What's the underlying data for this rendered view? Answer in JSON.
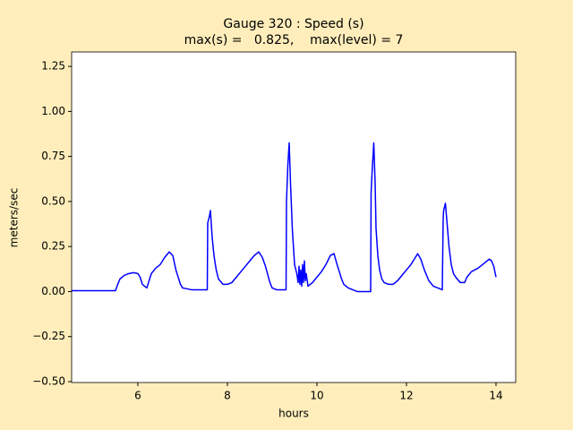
{
  "chart_data": {
    "type": "line",
    "title": "Gauge 320 : Speed (s)",
    "subtitle": "max(s) =   0.825,    max(level) = 7",
    "x_label": "hours",
    "y_label": "meters/sec",
    "x": [
      4.52,
      4.8,
      5.0,
      5.2,
      5.4,
      5.5,
      5.55,
      5.6,
      5.7,
      5.8,
      5.9,
      6.0,
      6.05,
      6.1,
      6.2,
      6.3,
      6.4,
      6.5,
      6.6,
      6.7,
      6.78,
      6.85,
      6.95,
      7.0,
      7.2,
      7.4,
      7.55,
      7.56,
      7.6,
      7.62,
      7.66,
      7.7,
      7.75,
      7.8,
      7.9,
      8.0,
      8.1,
      8.2,
      8.3,
      8.4,
      8.5,
      8.6,
      8.7,
      8.78,
      8.85,
      8.95,
      9.0,
      9.1,
      9.31,
      9.32,
      9.35,
      9.38,
      9.41,
      9.45,
      9.5,
      9.55,
      9.58,
      9.6,
      9.62,
      9.64,
      9.66,
      9.68,
      9.7,
      9.72,
      9.74,
      9.76,
      9.8,
      9.9,
      10.0,
      10.1,
      10.2,
      10.3,
      10.38,
      10.45,
      10.55,
      10.6,
      10.7,
      10.8,
      10.9,
      11.05,
      11.2,
      11.21,
      11.24,
      11.27,
      11.3,
      11.32,
      11.36,
      11.4,
      11.45,
      11.5,
      11.6,
      11.7,
      11.8,
      11.9,
      12.0,
      12.1,
      12.2,
      12.25,
      12.32,
      12.4,
      12.5,
      12.6,
      12.7,
      12.8,
      12.82,
      12.83,
      12.87,
      12.9,
      12.95,
      13.0,
      13.05,
      13.1,
      13.2,
      13.3,
      13.35,
      13.45,
      13.6,
      13.75,
      13.85,
      13.9,
      13.95,
      14.0
    ],
    "series": [
      {
        "name": "speed",
        "color": "#0000ff",
        "values": [
          0.005,
          0.005,
          0.005,
          0.005,
          0.005,
          0.005,
          0.04,
          0.07,
          0.09,
          0.1,
          0.105,
          0.1,
          0.08,
          0.04,
          0.02,
          0.1,
          0.13,
          0.15,
          0.19,
          0.22,
          0.2,
          0.12,
          0.04,
          0.02,
          0.01,
          0.01,
          0.01,
          0.38,
          0.42,
          0.45,
          0.3,
          0.2,
          0.12,
          0.07,
          0.04,
          0.04,
          0.05,
          0.08,
          0.11,
          0.14,
          0.17,
          0.2,
          0.22,
          0.19,
          0.14,
          0.05,
          0.02,
          0.01,
          0.01,
          0.5,
          0.7,
          0.825,
          0.6,
          0.35,
          0.15,
          0.1,
          0.05,
          0.14,
          0.04,
          0.12,
          0.03,
          0.15,
          0.05,
          0.17,
          0.06,
          0.1,
          0.03,
          0.05,
          0.08,
          0.11,
          0.15,
          0.2,
          0.21,
          0.15,
          0.07,
          0.04,
          0.02,
          0.01,
          0.0,
          0.0,
          0.0,
          0.55,
          0.7,
          0.825,
          0.6,
          0.35,
          0.2,
          0.12,
          0.07,
          0.05,
          0.04,
          0.04,
          0.06,
          0.09,
          0.12,
          0.15,
          0.19,
          0.21,
          0.18,
          0.12,
          0.06,
          0.03,
          0.02,
          0.01,
          0.4,
          0.45,
          0.49,
          0.4,
          0.25,
          0.15,
          0.1,
          0.08,
          0.05,
          0.05,
          0.08,
          0.11,
          0.13,
          0.16,
          0.18,
          0.17,
          0.14,
          0.08
        ]
      }
    ],
    "xlim": [
      4.52,
      14.44
    ],
    "ylim": [
      -0.505,
      1.33
    ],
    "xticks": [
      6,
      8,
      10,
      12,
      14
    ],
    "yticks": [
      {
        "value": -0.5,
        "label": "−0.50"
      },
      {
        "value": -0.25,
        "label": "−0.25"
      },
      {
        "value": 0,
        "label": "0.00"
      },
      {
        "value": 0.25,
        "label": "0.25"
      },
      {
        "value": 0.5,
        "label": "0.50"
      },
      {
        "value": 0.75,
        "label": "0.75"
      },
      {
        "value": 1.0,
        "label": "1.00"
      },
      {
        "value": 1.25,
        "label": "1.25"
      }
    ],
    "grid": false
  }
}
